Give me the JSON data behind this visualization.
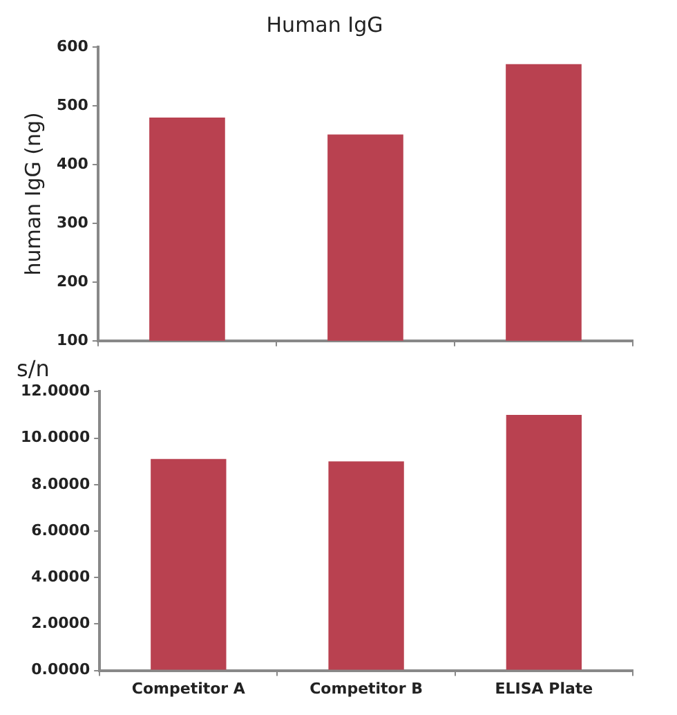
{
  "chart_data": [
    {
      "type": "bar",
      "title": "Human IgG",
      "ylabel": "human IgG (ng)",
      "categories": [
        null,
        null,
        null
      ],
      "values": [
        480,
        451,
        571
      ],
      "color": "#b94150",
      "ylim": [
        100,
        600
      ],
      "yticks": [
        100,
        200,
        300,
        400,
        500,
        600
      ],
      "tick_labels": "y",
      "grid": false,
      "legend": false
    },
    {
      "type": "bar",
      "title": "s/n",
      "categories": [
        "Competitor A",
        "Competitor B",
        "ELISA Plate"
      ],
      "values": [
        9.1,
        9.0,
        11.0
      ],
      "color": "#b94150",
      "ylim": [
        0,
        12
      ],
      "yticks": [
        {
          "value": 0,
          "label": "0.0000"
        },
        {
          "value": 2,
          "label": "2.0000"
        },
        {
          "value": 4,
          "label": "4.0000"
        },
        {
          "value": 6,
          "label": "6.0000"
        },
        {
          "value": 8,
          "label": "8.0000"
        },
        {
          "value": 10,
          "label": "10.0000"
        },
        {
          "value": 12,
          "label": "12.0000"
        }
      ],
      "grid": false,
      "legend": false
    }
  ]
}
